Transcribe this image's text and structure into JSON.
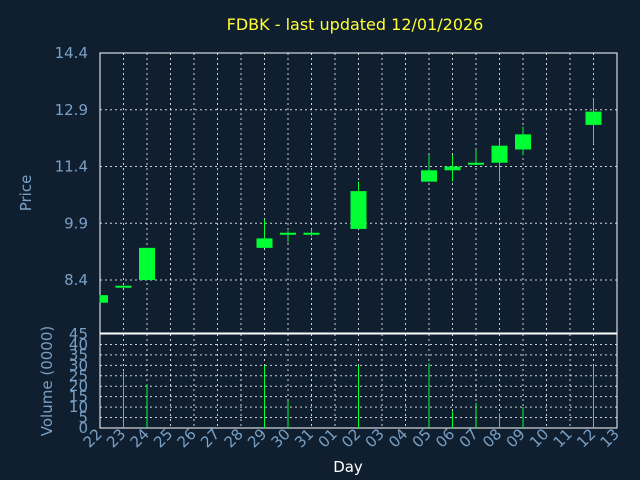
{
  "colors": {
    "background": "#0f1f30",
    "grid": "#ffffff",
    "candle": "#00ff33",
    "title": "#ffff33",
    "axis_text": "#7aa0c4"
  },
  "chart_data": {
    "type": "candlestick",
    "title": "FDBK - last updated 12/01/2026",
    "xlabel": "Day",
    "price_panel": {
      "ylabel": "Price",
      "ylim": [
        7.0,
        14.4
      ],
      "yticks": [
        "14.4",
        "12.9",
        "11.4",
        "9.9",
        "8.4"
      ]
    },
    "volume_panel": {
      "ylabel": "Volume (0000)",
      "ylim": [
        0,
        45
      ],
      "yticks": [
        "45",
        "40",
        "35",
        "30",
        "25",
        "20",
        "15",
        "10",
        "5",
        "0"
      ]
    },
    "x_ticks": [
      "22",
      "23",
      "24",
      "25",
      "26",
      "27",
      "28",
      "29",
      "30",
      "31",
      "01",
      "02",
      "03",
      "04",
      "05",
      "06",
      "07",
      "08",
      "09",
      "10",
      "11",
      "12",
      "13"
    ],
    "grid": true,
    "candles": [
      {
        "day": "22",
        "open": 8.0,
        "close": 7.8,
        "high": 8.0,
        "low": 7.8,
        "volume": 0
      },
      {
        "day": "23",
        "open": 8.2,
        "close": 8.25,
        "high": 8.25,
        "low": 8.2,
        "volume": 27
      },
      {
        "day": "24",
        "open": 8.4,
        "close": 9.25,
        "high": 9.25,
        "low": 8.4,
        "volume": 21
      },
      {
        "day": "29",
        "open": 9.25,
        "close": 9.5,
        "high": 10.0,
        "low": 9.25,
        "volume": 30
      },
      {
        "day": "30",
        "open": 9.6,
        "close": 9.65,
        "high": 9.7,
        "low": 9.4,
        "volume": 13
      },
      {
        "day": "31",
        "open": 9.6,
        "close": 9.65,
        "high": 9.75,
        "low": 9.55,
        "volume": 0
      },
      {
        "day": "02",
        "open": 9.75,
        "close": 10.75,
        "high": 11.0,
        "low": 9.75,
        "volume": 30
      },
      {
        "day": "05",
        "open": 11.0,
        "close": 11.3,
        "high": 11.7,
        "low": 11.0,
        "volume": 31
      },
      {
        "day": "06",
        "open": 11.3,
        "close": 11.4,
        "high": 11.7,
        "low": 11.0,
        "volume": 8
      },
      {
        "day": "07",
        "open": 11.45,
        "close": 11.5,
        "high": 11.85,
        "low": 11.45,
        "volume": 12
      },
      {
        "day": "08",
        "open": 11.5,
        "close": 11.95,
        "high": 12.1,
        "low": 11.0,
        "volume": 7
      },
      {
        "day": "09",
        "open": 11.85,
        "close": 12.25,
        "high": 12.45,
        "low": 11.7,
        "volume": 10
      },
      {
        "day": "12",
        "open": 12.5,
        "close": 12.85,
        "high": 13.2,
        "low": 12.0,
        "volume": 30
      }
    ]
  }
}
